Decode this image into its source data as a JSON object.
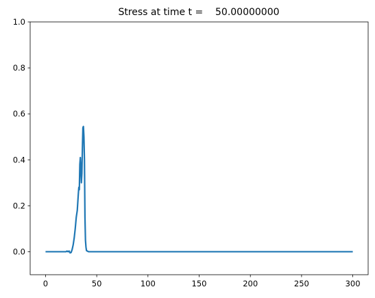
{
  "chart_data": {
    "type": "line",
    "title": "Stress at time t =    50.00000000",
    "x": [
      0,
      5,
      10,
      15,
      20,
      21,
      22,
      23,
      24,
      25,
      26,
      27,
      28,
      29,
      30,
      31,
      32,
      32.5,
      33,
      33.5,
      34,
      34.5,
      35,
      35.5,
      36,
      36.5,
      37,
      37.5,
      38,
      38.5,
      39,
      39.5,
      40,
      42,
      50,
      100,
      150,
      200,
      250,
      300
    ],
    "values": [
      0,
      0,
      0,
      0,
      0,
      0.003,
      0,
      0.003,
      -0.005,
      -0.003,
      0.01,
      0.03,
      0.06,
      0.1,
      0.15,
      0.18,
      0.25,
      0.28,
      0.27,
      0.38,
      0.41,
      0.36,
      0.3,
      0.34,
      0.45,
      0.54,
      0.545,
      0.5,
      0.4,
      0.15,
      0.05,
      0.02,
      0.005,
      0,
      0,
      0,
      0,
      0,
      0,
      0
    ],
    "color": "#1f77b4",
    "xlim": [
      -15,
      315
    ],
    "xticks": [
      0,
      50,
      100,
      150,
      200,
      250,
      300
    ],
    "ylim": [
      -0.1,
      1
    ],
    "yticks": [
      {
        "value": 0,
        "label": "0.0"
      },
      {
        "value": 0.2,
        "label": "0.2"
      },
      {
        "value": 0.4,
        "label": "0.4"
      },
      {
        "value": 0.6,
        "label": "0.6"
      },
      {
        "value": 0.8,
        "label": "0.8"
      },
      {
        "value": 1,
        "label": "1.0"
      }
    ],
    "grid": false
  }
}
